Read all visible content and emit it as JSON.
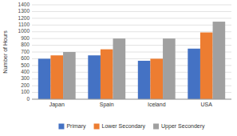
{
  "chart_data": {
    "type": "bar",
    "categories": [
      "Japan",
      "Spain",
      "Iceland",
      "USA"
    ],
    "series": [
      {
        "name": "Primary",
        "color": "#4472c4",
        "values": [
          600,
          650,
          570,
          750
        ]
      },
      {
        "name": "Lower Secondary",
        "color": "#ed7d31",
        "values": [
          650,
          740,
          600,
          990
        ]
      },
      {
        "name": "Upper Secondery",
        "color": "#a0a0a0",
        "values": [
          700,
          900,
          900,
          1150
        ]
      }
    ],
    "ylabel": "Number of Hours",
    "ylim": [
      0,
      1400
    ],
    "yticks": [
      0,
      100,
      200,
      300,
      400,
      500,
      600,
      700,
      800,
      900,
      1000,
      1100,
      1200,
      1300,
      1400
    ],
    "grid": true,
    "legend": "bottom"
  }
}
